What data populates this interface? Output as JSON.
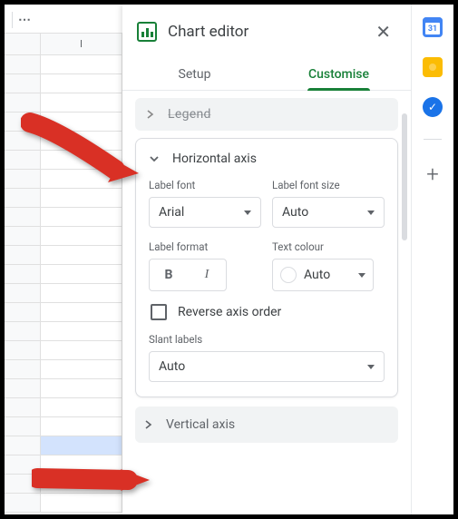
{
  "sheet": {
    "col_header": "I",
    "visible_rows": 24,
    "selected_row_index": 20
  },
  "panel": {
    "title": "Chart editor",
    "tabs": {
      "setup": "Setup",
      "customise": "Customise",
      "active": "customise"
    },
    "legend_collapsed_label": "Legend",
    "horizontal_axis": {
      "section_title": "Horizontal axis",
      "label_font_lbl": "Label font",
      "label_font_value": "Arial",
      "label_font_size_lbl": "Label font size",
      "label_font_size_value": "Auto",
      "label_format_lbl": "Label format",
      "text_colour_lbl": "Text colour",
      "text_colour_value": "Auto",
      "reverse_label": "Reverse axis order",
      "slant_lbl": "Slant labels",
      "slant_value": "Auto"
    },
    "vertical_axis_label": "Vertical axis"
  },
  "rail": {
    "calendar_day": "31"
  },
  "annotations": {
    "arrow_color": "#d93025"
  }
}
